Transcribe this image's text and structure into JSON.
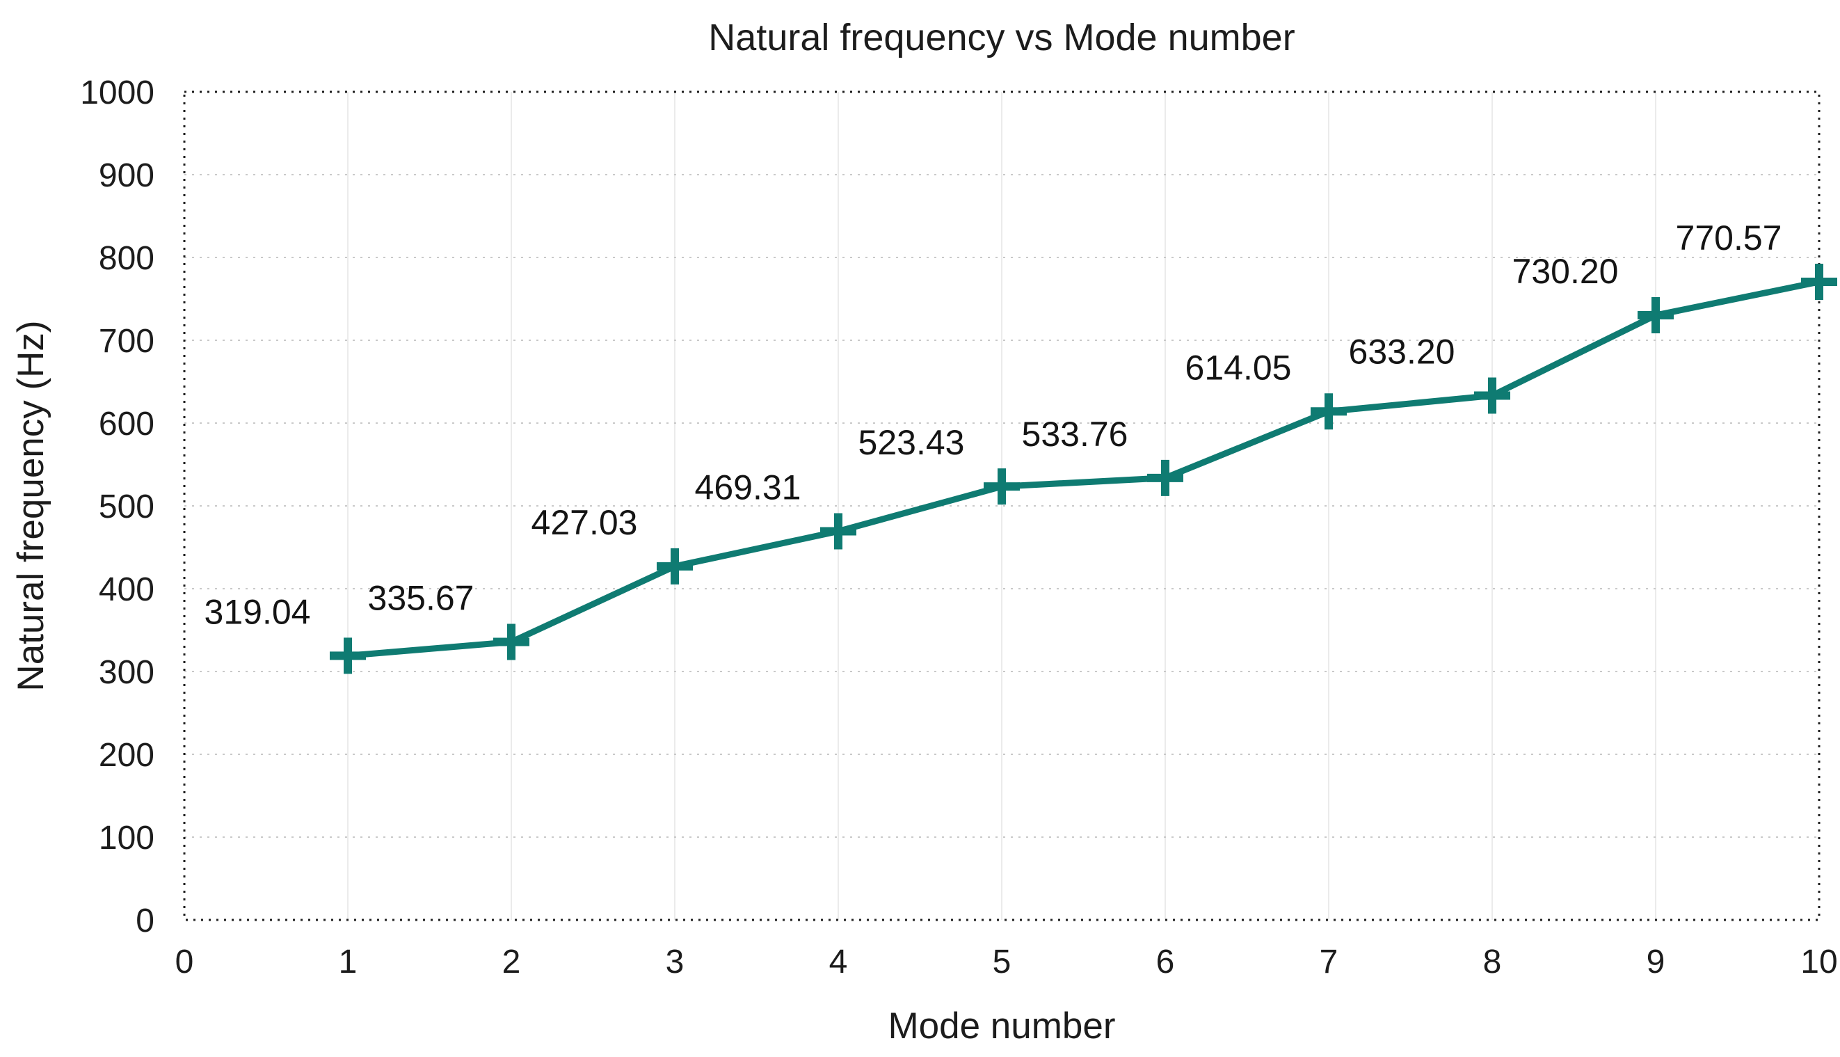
{
  "chart_data": {
    "type": "line",
    "title": "Natural frequency vs Mode number",
    "xlabel": "Mode number",
    "ylabel": "Natural frequency (Hz)",
    "x": [
      1,
      2,
      3,
      4,
      5,
      6,
      7,
      8,
      9,
      10
    ],
    "values": [
      319.04,
      335.67,
      427.03,
      469.31,
      523.43,
      533.76,
      614.05,
      633.2,
      730.2,
      770.57
    ],
    "point_labels": [
      "319.04",
      "335.67",
      "427.03",
      "469.31",
      "523.43",
      "533.76",
      "614.05",
      "633.20",
      "730.20",
      "770.57"
    ],
    "xlim": [
      0,
      10
    ],
    "ylim": [
      0,
      1000
    ],
    "xticks": [
      "0",
      "1",
      "2",
      "3",
      "4",
      "5",
      "6",
      "7",
      "8",
      "9",
      "10"
    ],
    "yticks": [
      "0",
      "100",
      "200",
      "300",
      "400",
      "500",
      "600",
      "700",
      "800",
      "900",
      "1000"
    ],
    "grid": true,
    "legend_position": "none",
    "marker": "plus",
    "colors": {
      "line": "#0f7b72",
      "marker": "#0f7b72",
      "text": "#1c1c1c",
      "h_gridline": "#c9c9c9",
      "v_gridline": "#ebebeb",
      "frame": "#1f1f1f",
      "background": "#ffffff"
    }
  }
}
